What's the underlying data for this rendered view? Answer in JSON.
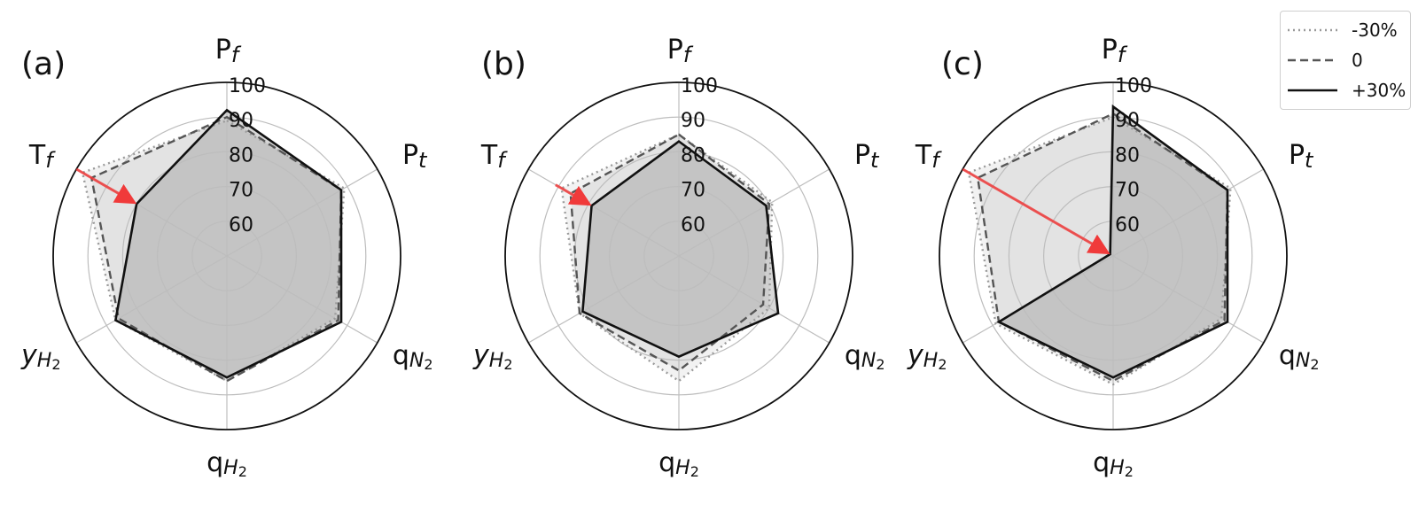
{
  "chart_data": [
    {
      "type": "radar",
      "panel_label": "(a)",
      "axes": [
        "P_f",
        "P_t",
        "q_N2",
        "q_H2",
        "y_H2",
        "T_f"
      ],
      "r_ticks": [
        "60",
        "70",
        "80",
        "90",
        "100"
      ],
      "rlim": [
        50,
        100
      ],
      "grid": true,
      "series": [
        {
          "name": "-30%",
          "values": [
            89,
            89,
            86,
            86,
            87,
            98
          ]
        },
        {
          "name": "0",
          "values": [
            90,
            88,
            87,
            86,
            86,
            95
          ]
        },
        {
          "name": "+30%",
          "values": [
            92,
            88,
            88,
            85,
            87,
            80
          ]
        }
      ],
      "annotation": "arrow on T_f axis from 98 to 80"
    },
    {
      "type": "radar",
      "panel_label": "(b)",
      "axes": [
        "P_f",
        "P_t",
        "q_N2",
        "q_H2",
        "y_H2",
        "T_f"
      ],
      "r_ticks": [
        "60",
        "70",
        "80",
        "90",
        "100"
      ],
      "rlim": [
        50,
        100
      ],
      "grid": true,
      "series": [
        {
          "name": "-30%",
          "values": [
            85,
            81,
            80,
            86,
            83,
            89
          ]
        },
        {
          "name": "0",
          "values": [
            85,
            80,
            78,
            83,
            83,
            86
          ]
        },
        {
          "name": "+30%",
          "values": [
            83,
            79,
            83,
            79,
            82,
            79
          ]
        }
      ],
      "annotation": "arrow on T_f axis from 90 to 80"
    },
    {
      "type": "radar",
      "panel_label": "(c)",
      "axes": [
        "P_f",
        "P_t",
        "q_N2",
        "q_H2",
        "y_H2",
        "T_f"
      ],
      "r_ticks": [
        "60",
        "70",
        "80",
        "90",
        "100"
      ],
      "rlim": [
        50,
        100
      ],
      "grid": true,
      "series": [
        {
          "name": "-30%",
          "values": [
            90,
            89,
            86,
            87,
            89,
            98
          ]
        },
        {
          "name": "0",
          "values": [
            91,
            88,
            87,
            86,
            88,
            95
          ]
        },
        {
          "name": "+30%",
          "values": [
            93,
            88,
            88,
            85,
            88,
            51
          ]
        }
      ],
      "annotation": "arrow on T_f axis from 98 to 51"
    }
  ],
  "legend": {
    "placement": "top-right",
    "entries": [
      {
        "label": "-30%",
        "style": "dotted",
        "color": "#9a9a9a"
      },
      {
        "label": "0",
        "style": "dashed",
        "color": "#555555"
      },
      {
        "label": "+30%",
        "style": "solid",
        "color": "#111111"
      }
    ]
  },
  "colors": {
    "fill": "#7f7f7f",
    "arrow": "#f03a3a",
    "grid": "#bdbdbd",
    "frame": "#111111"
  }
}
